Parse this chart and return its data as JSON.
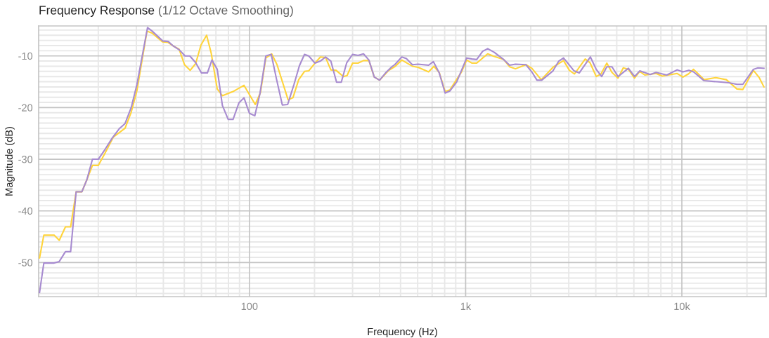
{
  "chart_data": {
    "type": "line",
    "title": "Frequency Response",
    "subtitle": "(1/12 Octave Smoothing)",
    "xlabel": "Frequency (Hz)",
    "ylabel": "Magnitude (dB)",
    "log": "x",
    "grid": true,
    "marker": "none",
    "line_style": "solid",
    "xlim": [
      10.6,
      24550
    ],
    "ylim": [
      -56.6,
      -4.2
    ],
    "xticks": [
      {
        "value": 20,
        "label": null
      },
      {
        "value": 30,
        "label": null
      },
      {
        "value": 40,
        "label": null
      },
      {
        "value": 50,
        "label": null
      },
      {
        "value": 60,
        "label": null
      },
      {
        "value": 70,
        "label": null
      },
      {
        "value": 80,
        "label": null
      },
      {
        "value": 90,
        "label": null
      },
      {
        "value": 100,
        "label": "100"
      },
      {
        "value": 200,
        "label": null
      },
      {
        "value": 300,
        "label": null
      },
      {
        "value": 400,
        "label": null
      },
      {
        "value": 500,
        "label": null
      },
      {
        "value": 600,
        "label": null
      },
      {
        "value": 700,
        "label": null
      },
      {
        "value": 800,
        "label": null
      },
      {
        "value": 900,
        "label": null
      },
      {
        "value": 1000,
        "label": "1k"
      },
      {
        "value": 2000,
        "label": null
      },
      {
        "value": 3000,
        "label": null
      },
      {
        "value": 4000,
        "label": null
      },
      {
        "value": 5000,
        "label": null
      },
      {
        "value": 6000,
        "label": null
      },
      {
        "value": 7000,
        "label": null
      },
      {
        "value": 8000,
        "label": null
      },
      {
        "value": 9000,
        "label": null
      },
      {
        "value": 10000,
        "label": "10k"
      },
      {
        "value": 20000,
        "label": null
      }
    ],
    "yticks": [
      {
        "value": -56,
        "label": null
      },
      {
        "value": -55,
        "label": null
      },
      {
        "value": -54,
        "label": null
      },
      {
        "value": -53,
        "label": null
      },
      {
        "value": -52,
        "label": null
      },
      {
        "value": -51,
        "label": null
      },
      -50,
      {
        "value": -49,
        "label": null
      },
      {
        "value": -48,
        "label": null
      },
      {
        "value": -47,
        "label": null
      },
      {
        "value": -46,
        "label": null
      },
      {
        "value": -45,
        "label": null
      },
      {
        "value": -44,
        "label": null
      },
      {
        "value": -43,
        "label": null
      },
      {
        "value": -42,
        "label": null
      },
      {
        "value": -41,
        "label": null
      },
      -40,
      {
        "value": -39,
        "label": null
      },
      {
        "value": -38,
        "label": null
      },
      {
        "value": -37,
        "label": null
      },
      {
        "value": -36,
        "label": null
      },
      {
        "value": -35,
        "label": null
      },
      {
        "value": -34,
        "label": null
      },
      {
        "value": -33,
        "label": null
      },
      {
        "value": -32,
        "label": null
      },
      {
        "value": -31,
        "label": null
      },
      -30,
      {
        "value": -29,
        "label": null
      },
      {
        "value": -28,
        "label": null
      },
      {
        "value": -27,
        "label": null
      },
      {
        "value": -26,
        "label": null
      },
      {
        "value": -25,
        "label": null
      },
      {
        "value": -24,
        "label": null
      },
      {
        "value": -23,
        "label": null
      },
      {
        "value": -22,
        "label": null
      },
      {
        "value": -21,
        "label": null
      },
      -20,
      {
        "value": -19,
        "label": null
      },
      {
        "value": -18,
        "label": null
      },
      {
        "value": -17,
        "label": null
      },
      {
        "value": -16,
        "label": null
      },
      {
        "value": -15,
        "label": null
      },
      {
        "value": -14,
        "label": null
      },
      {
        "value": -13,
        "label": null
      },
      {
        "value": -12,
        "label": null
      },
      {
        "value": -11,
        "label": null
      },
      -10,
      {
        "value": -9,
        "label": null
      },
      {
        "value": -8,
        "label": null
      },
      {
        "value": -7,
        "label": null
      },
      {
        "value": -6,
        "label": null
      },
      {
        "value": -5,
        "label": null
      }
    ],
    "series": [
      {
        "color": "#ffd43b",
        "x": [
          10.7,
          11.2,
          12.5,
          13.2,
          14.1,
          14.9,
          15.8,
          16.8,
          17.7,
          18.8,
          20.0,
          21.5,
          23.5,
          26.6,
          28.4,
          30.2,
          33.6,
          35.5,
          39.7,
          42.1,
          44.5,
          47.3,
          50.1,
          53.2,
          56.4,
          59.7,
          63.4,
          66.6,
          71.0,
          75.0,
          84.0,
          94.4,
          106.4,
          112.5,
          119.1,
          126.8,
          134.2,
          151,
          159,
          169,
          179.8,
          188,
          201,
          213,
          225,
          238,
          252,
          272,
          283,
          300,
          318,
          337,
          357,
          378,
          400,
          441,
          470,
          507,
          567,
          603,
          674,
          713,
          755,
          804,
          845,
          957,
          1011,
          1071,
          1125,
          1199,
          1265,
          1357,
          1500,
          1597,
          1700,
          1900,
          2024,
          2236,
          2535,
          2837,
          3020,
          3187,
          3573,
          3758,
          4018,
          4227,
          4497,
          4751,
          5070,
          5360,
          5660,
          6040,
          6385,
          6740,
          7600,
          8110,
          9515,
          10120,
          10720,
          11330,
          12670,
          14370,
          16060,
          17980,
          19150,
          21430,
          22800,
          23970
        ],
        "values": [
          -49.1,
          -44.7,
          -44.7,
          -45.7,
          -43.1,
          -43.1,
          -36.3,
          -36.3,
          -34.0,
          -31.2,
          -31.2,
          -28.8,
          -25.7,
          -24.0,
          -20.9,
          -16.7,
          -5.2,
          -5.6,
          -7.3,
          -7.4,
          -8.1,
          -8.7,
          -11.7,
          -12.8,
          -11.5,
          -7.9,
          -6.0,
          -9.5,
          -16.4,
          -17.7,
          -16.9,
          -15.7,
          -19.4,
          -17.1,
          -10.4,
          -9.6,
          -11.7,
          -18.5,
          -18.1,
          -14.6,
          -13.0,
          -12.9,
          -11.4,
          -10.2,
          -10.3,
          -12.7,
          -12.8,
          -14.0,
          -13.8,
          -11.4,
          -11.4,
          -10.9,
          -10.9,
          -14.1,
          -14.7,
          -12.8,
          -12.1,
          -10.8,
          -12.0,
          -12.2,
          -13.1,
          -12.0,
          -13.2,
          -16.9,
          -16.6,
          -13.1,
          -10.8,
          -11.4,
          -11.4,
          -10.4,
          -9.6,
          -10.1,
          -10.7,
          -12.1,
          -12.5,
          -11.7,
          -12.4,
          -14.6,
          -12.2,
          -10.9,
          -12.8,
          -13.5,
          -10.6,
          -11.3,
          -14.0,
          -13.5,
          -11.4,
          -13.2,
          -14.3,
          -12.3,
          -12.6,
          -14.3,
          -13.0,
          -13.7,
          -13.4,
          -13.9,
          -13.4,
          -14.1,
          -13.5,
          -12.6,
          -14.6,
          -14.2,
          -14.6,
          -16.4,
          -16.5,
          -12.8,
          -14.2,
          -16.0
        ]
      },
      {
        "color": "#a78bd0",
        "x": [
          10.7,
          11.2,
          12.5,
          13.2,
          14.1,
          14.9,
          15.8,
          16.8,
          17.7,
          18.8,
          20.0,
          21.5,
          23.2,
          25.0,
          26.6,
          28.4,
          30.2,
          32.2,
          33.8,
          35.5,
          39.7,
          42.1,
          44.5,
          47.3,
          50.4,
          53.0,
          56.4,
          60.0,
          63.9,
          67.1,
          71.0,
          75.0,
          79.8,
          84.0,
          89.4,
          94.4,
          100,
          105.9,
          111.9,
          119.1,
          126.2,
          133.3,
          142,
          150.3,
          160.8,
          170.3,
          179.8,
          188,
          201,
          213,
          225,
          238,
          253,
          266,
          282,
          300,
          318,
          337,
          357,
          378,
          400,
          426,
          453,
          470,
          507,
          532,
          567,
          603,
          674,
          709,
          755,
          804,
          845,
          910,
          957,
          1011,
          1071,
          1125,
          1199,
          1265,
          1357,
          1500,
          1597,
          1700,
          1900,
          2024,
          2138,
          2248,
          2535,
          2698,
          2837,
          3173,
          3352,
          3776,
          4018,
          4257,
          4497,
          4751,
          5070,
          5660,
          6040,
          6385,
          7140,
          7600,
          8510,
          9515,
          10120,
          10780,
          11330,
          12670,
          14550,
          16480,
          17980,
          19150,
          21430,
          22510,
          23970
        ],
        "values": [
          -55.8,
          -50.1,
          -50.1,
          -49.8,
          -47.9,
          -47.9,
          -36.3,
          -36.3,
          -34.0,
          -30.0,
          -30.0,
          -28.1,
          -25.9,
          -24.1,
          -23.1,
          -20.0,
          -15.5,
          -9.2,
          -4.5,
          -5.2,
          -7.1,
          -7.2,
          -8.1,
          -8.8,
          -10.0,
          -10.0,
          -11.3,
          -13.3,
          -13.3,
          -10.8,
          -12.6,
          -19.6,
          -22.3,
          -22.3,
          -19.1,
          -18.1,
          -21.1,
          -21.6,
          -17.3,
          -10.0,
          -9.7,
          -14.4,
          -19.5,
          -19.4,
          -15.5,
          -11.9,
          -9.7,
          -10.0,
          -11.4,
          -11.0,
          -10.2,
          -11.0,
          -15.1,
          -15.1,
          -11.3,
          -9.7,
          -9.9,
          -9.6,
          -10.8,
          -14.1,
          -14.7,
          -13.3,
          -12.2,
          -11.7,
          -10.2,
          -10.5,
          -11.7,
          -11.6,
          -11.8,
          -11.1,
          -13.3,
          -17.2,
          -16.8,
          -15.0,
          -12.8,
          -10.4,
          -10.6,
          -10.7,
          -9.1,
          -8.6,
          -9.3,
          -10.7,
          -11.8,
          -11.6,
          -11.7,
          -13.1,
          -14.7,
          -14.7,
          -12.9,
          -11.0,
          -10.4,
          -12.9,
          -13.3,
          -10.2,
          -12.6,
          -14.0,
          -12.1,
          -12.1,
          -14.0,
          -12.4,
          -14.0,
          -12.9,
          -13.6,
          -13.2,
          -13.7,
          -12.7,
          -13.1,
          -12.8,
          -13.1,
          -14.8,
          -15.0,
          -15.2,
          -15.5,
          -15.5,
          -12.6,
          -12.3,
          -12.4
        ]
      }
    ]
  }
}
